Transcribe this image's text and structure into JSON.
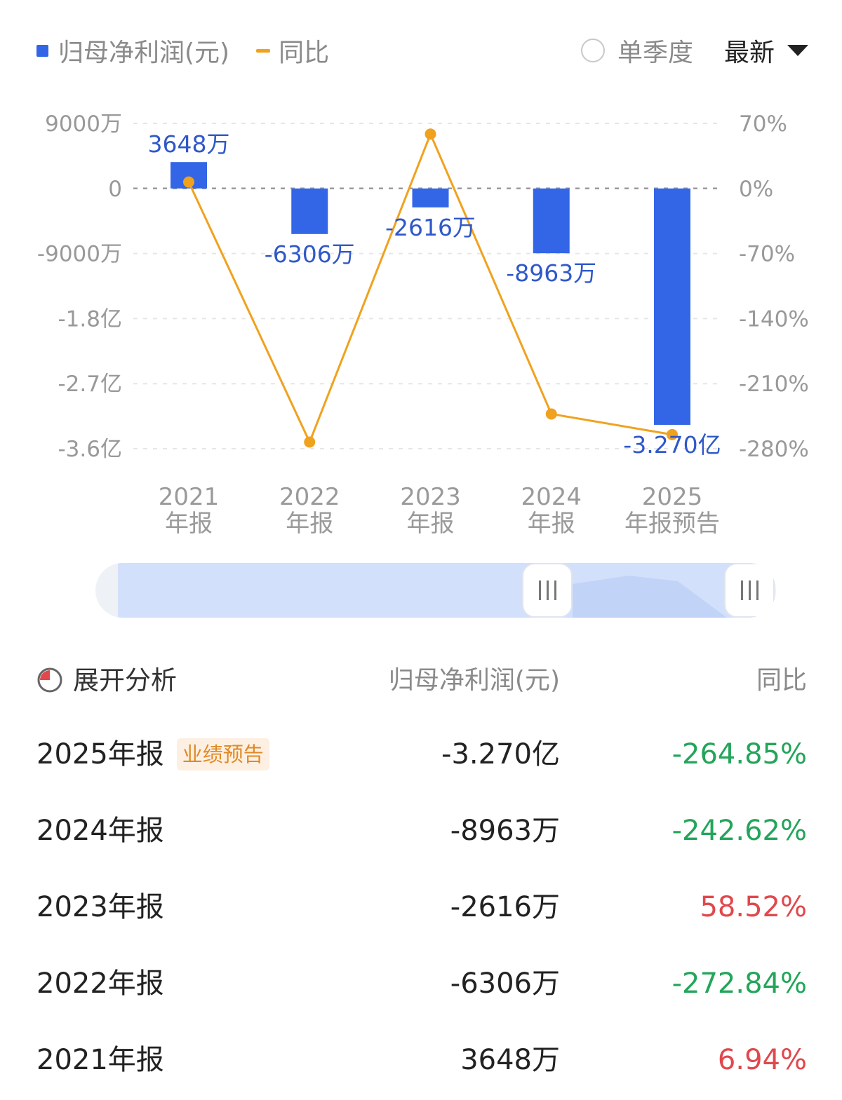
{
  "legend": {
    "bar_label": "归母净利润(元)",
    "line_label": "同比"
  },
  "controls": {
    "quarter_label": "单季度",
    "period_select": "最新"
  },
  "colors": {
    "bar": "#3366e6",
    "line": "#f0a21e",
    "negative": "#23a55a",
    "positive": "#e0484c"
  },
  "chart_data": {
    "type": "bar",
    "categories": [
      "2021\n年报",
      "2022\n年报",
      "2023\n年报",
      "2024\n年报",
      "2025\n年报预告"
    ],
    "series": [
      {
        "name": "归母净利润(元)",
        "type": "bar",
        "axis": "left",
        "values": [
          3648,
          -6306,
          -2616,
          -8963,
          -32700
        ],
        "labels": [
          "3648万",
          "-6306万",
          "-2616万",
          "-8963万",
          "-3.270亿"
        ]
      },
      {
        "name": "同比",
        "type": "line",
        "axis": "right",
        "values": [
          6.94,
          -272.84,
          58.52,
          -242.62,
          -264.85
        ]
      }
    ],
    "y_left": {
      "unit": "万",
      "ylim": [
        -36000,
        9000
      ],
      "ticks": [
        9000,
        0,
        -9000,
        -18000,
        -27000,
        -36000
      ],
      "tick_labels": [
        "9000万",
        "0",
        "-9000万",
        "-1.8亿",
        "-2.7亿",
        "-3.6亿"
      ]
    },
    "y_right": {
      "unit": "%",
      "ylim": [
        -280,
        70
      ],
      "ticks": [
        70,
        0,
        -70,
        -140,
        -210,
        -280
      ],
      "tick_labels": [
        "70%",
        "0%",
        "-70%",
        "-140%",
        "-210%",
        "-280%"
      ]
    },
    "grid": true
  },
  "table": {
    "expand_label": "展开分析",
    "col_value": "归母净利润(元)",
    "col_yoy": "同比",
    "rows": [
      {
        "period": "2025年报",
        "badge": "业绩预告",
        "value": "-3.270亿",
        "yoy": "-264.85%",
        "sign": "neg"
      },
      {
        "period": "2024年报",
        "badge": "",
        "value": "-8963万",
        "yoy": "-242.62%",
        "sign": "neg"
      },
      {
        "period": "2023年报",
        "badge": "",
        "value": "-2616万",
        "yoy": "58.52%",
        "sign": "pos"
      },
      {
        "period": "2022年报",
        "badge": "",
        "value": "-6306万",
        "yoy": "-272.84%",
        "sign": "neg"
      },
      {
        "period": "2021年报",
        "badge": "",
        "value": "3648万",
        "yoy": "6.94%",
        "sign": "pos"
      }
    ]
  }
}
